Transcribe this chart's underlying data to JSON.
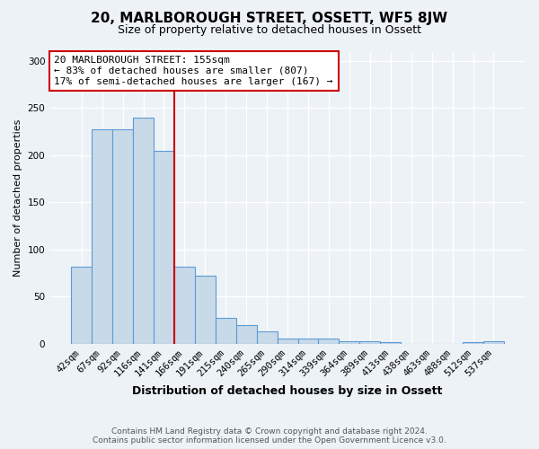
{
  "title": "20, MARLBOROUGH STREET, OSSETT, WF5 8JW",
  "subtitle": "Size of property relative to detached houses in Ossett",
  "xlabel": "Distribution of detached houses by size in Ossett",
  "ylabel": "Number of detached properties",
  "categories": [
    "42sqm",
    "67sqm",
    "92sqm",
    "116sqm",
    "141sqm",
    "166sqm",
    "191sqm",
    "215sqm",
    "240sqm",
    "265sqm",
    "290sqm",
    "314sqm",
    "339sqm",
    "364sqm",
    "389sqm",
    "413sqm",
    "438sqm",
    "463sqm",
    "488sqm",
    "512sqm",
    "537sqm"
  ],
  "values": [
    82,
    228,
    228,
    240,
    205,
    82,
    72,
    27,
    20,
    13,
    5,
    5,
    5,
    3,
    3,
    2,
    0,
    0,
    0,
    2,
    3
  ],
  "bar_color": "#c8d9e8",
  "bar_edge_color": "#5b9bd5",
  "annotation_line1": "20 MARLBOROUGH STREET: 155sqm",
  "annotation_line2": "← 83% of detached houses are smaller (807)",
  "annotation_line3": "17% of semi-detached houses are larger (167) →",
  "vline_color": "#cc0000",
  "vline_x": 4.5,
  "ylim": [
    0,
    310
  ],
  "yticks": [
    0,
    50,
    100,
    150,
    200,
    250,
    300
  ],
  "footer1": "Contains HM Land Registry data © Crown copyright and database right 2024.",
  "footer2": "Contains public sector information licensed under the Open Government Licence v3.0.",
  "bg_color": "#edf2f7",
  "plot_bg_color": "#edf2f7",
  "title_fontsize": 11,
  "subtitle_fontsize": 9,
  "xlabel_fontsize": 9,
  "ylabel_fontsize": 8,
  "tick_fontsize": 7.5,
  "annot_fontsize": 8
}
